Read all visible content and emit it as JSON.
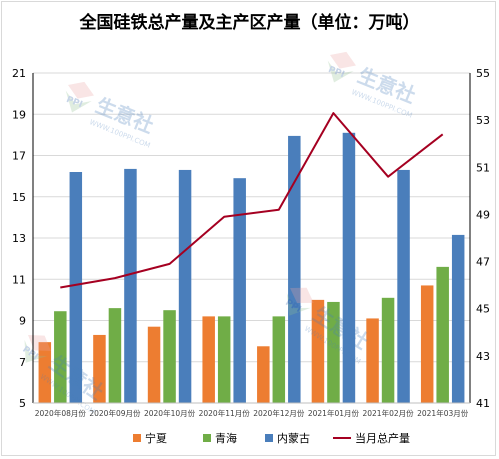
{
  "chart_data": {
    "type": "bar",
    "title": "全国硅铁总产量及主产区产量（单位：万吨）",
    "categories": [
      "2020年08月份",
      "2020年09月份",
      "2020年10月份",
      "2020年11月份",
      "2020年12月份",
      "2021年01月份",
      "2021年02月份",
      "2021年03月份"
    ],
    "series": [
      {
        "name": "宁夏",
        "type": "bar",
        "axis": "left",
        "color": "#ed7d31",
        "values": [
          7.95,
          8.3,
          8.7,
          9.2,
          7.75,
          10.0,
          9.1,
          10.7
        ]
      },
      {
        "name": "青海",
        "type": "bar",
        "axis": "left",
        "color": "#70ad47",
        "values": [
          9.45,
          9.6,
          9.5,
          9.2,
          9.2,
          9.9,
          10.1,
          11.6
        ]
      },
      {
        "name": "内蒙古",
        "type": "bar",
        "axis": "left",
        "color": "#4a7ebb",
        "values": [
          16.2,
          16.35,
          16.3,
          15.9,
          17.95,
          18.1,
          16.3,
          13.15
        ]
      },
      {
        "name": "当月总产量",
        "type": "line",
        "axis": "right",
        "color": "#a50021",
        "values": [
          45.9,
          46.3,
          46.9,
          48.9,
          49.2,
          53.3,
          50.6,
          52.4
        ]
      }
    ],
    "y_left": {
      "min": 5,
      "max": 21,
      "ticks": [
        5,
        7,
        9,
        11,
        13,
        15,
        17,
        19,
        21
      ]
    },
    "y_right": {
      "min": 41,
      "max": 55,
      "ticks": [
        41,
        43,
        45,
        47,
        49,
        51,
        53,
        55
      ]
    },
    "xlabel": "",
    "ylabel": "",
    "grid": true,
    "legend_position": "bottom"
  },
  "watermark": {
    "text": "生意社",
    "url": "WWW.100PPI.COM",
    "logo_text": "PPI"
  }
}
